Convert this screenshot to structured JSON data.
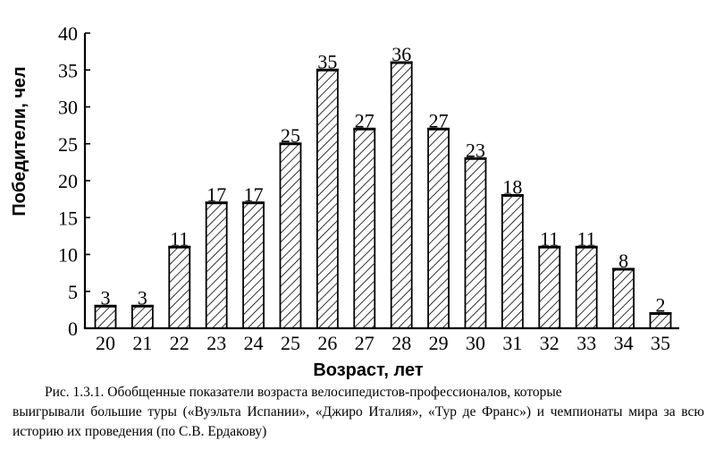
{
  "chart_data": {
    "type": "bar",
    "categories": [
      "20",
      "21",
      "22",
      "23",
      "24",
      "25",
      "26",
      "27",
      "28",
      "29",
      "30",
      "31",
      "32",
      "33",
      "34",
      "35"
    ],
    "values": [
      3,
      3,
      11,
      17,
      17,
      25,
      35,
      27,
      36,
      27,
      23,
      18,
      11,
      11,
      8,
      2
    ],
    "data_labels": [
      "3",
      "3",
      "11",
      "17",
      "17",
      "25",
      "35",
      "27",
      "36",
      "27",
      "23",
      "18",
      "11",
      "11",
      "8",
      "2"
    ],
    "yticks": [
      "0",
      "5",
      "10",
      "15",
      "20",
      "25",
      "30",
      "35",
      "40"
    ],
    "ylim": [
      0,
      40
    ],
    "xlabel": "Возраст, лет",
    "ylabel": "Победители, чел",
    "grid": false,
    "bar_fill": "diagonal-hatch",
    "color": "#000000"
  },
  "caption": {
    "line1": "Рис. 1.3.1. Обобщенные показатели возраста велосипедистов-профессионалов, которые",
    "line2": "выигрывали большие туры («Вуэльта Испании», «Джиро Италия», «Тур де Франс») и",
    "line3": "чемпионаты мира за всю историю их проведения (по С.В. Ердакову)"
  }
}
